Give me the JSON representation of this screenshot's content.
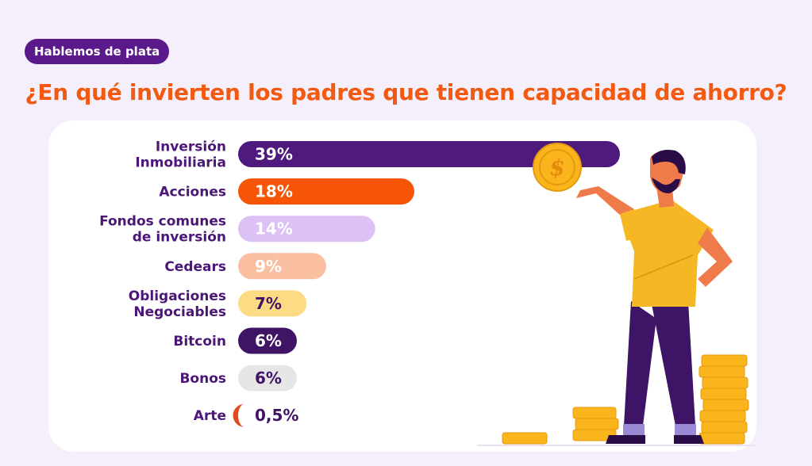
{
  "header": {
    "badge": "Hablemos de plata",
    "title": "¿En qué invierten los padres que tienen capacidad de ahorro?"
  },
  "chart_data": {
    "type": "bar",
    "orientation": "horizontal",
    "title": "¿En qué invierten los padres que tienen capacidad de ahorro?",
    "unit": "%",
    "categories": [
      "Inversión Inmobiliaria",
      "Acciones",
      "Fondos comunes de inversión",
      "Cedears",
      "Obligaciones Negociables",
      "Bitcoin",
      "Bonos",
      "Arte"
    ],
    "category_lines": [
      [
        "Inversión",
        "Inmobiliaria"
      ],
      [
        "Acciones"
      ],
      [
        "Fondos comunes",
        "de inversión"
      ],
      [
        "Cedears"
      ],
      [
        "Obligaciones",
        "Negociables"
      ],
      [
        "Bitcoin"
      ],
      [
        "Bonos"
      ],
      [
        "Arte"
      ]
    ],
    "values": [
      39,
      18,
      14,
      9,
      7,
      6,
      6,
      0.5
    ],
    "value_labels": [
      "39%",
      "18%",
      "14%",
      "9%",
      "7%",
      "6%",
      "6%",
      "0,5%"
    ],
    "bar_colors": [
      "#4e1a7e",
      "#f75506",
      "#dcc1f5",
      "#f9bfa0",
      "#fcdb84",
      "#3f1465",
      "#e6e6e6",
      "#e04a1e"
    ],
    "value_text_colors": [
      "#ffffff",
      "#ffffff",
      "#ffffff",
      "#ffffff",
      "#3f1465",
      "#ffffff",
      "#3f1465",
      "#3f1465"
    ],
    "xlim": [
      0,
      39
    ],
    "grid": false,
    "legend": "none"
  },
  "illustration": {
    "figure": "man-holding-coin",
    "coin_symbol": "$"
  }
}
